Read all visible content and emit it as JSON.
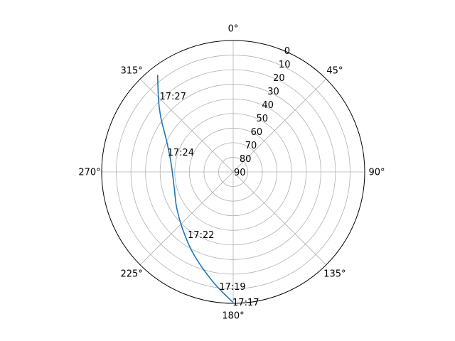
{
  "chart_data": {
    "type": "polar-line",
    "theta_direction": "clockwise",
    "theta_zero": "N",
    "r_axis": {
      "inverted": true,
      "range": [
        90,
        0
      ],
      "ticks": [
        "0",
        "10",
        "20",
        "30",
        "40",
        "50",
        "60",
        "70",
        "80",
        "90"
      ]
    },
    "theta_ticks": [
      {
        "deg": 0,
        "label": "0°"
      },
      {
        "deg": 45,
        "label": "45°"
      },
      {
        "deg": 90,
        "label": "90°"
      },
      {
        "deg": 135,
        "label": "135°"
      },
      {
        "deg": 180,
        "label": "180°"
      },
      {
        "deg": 225,
        "label": "225°"
      },
      {
        "deg": 270,
        "label": "270°"
      },
      {
        "deg": 315,
        "label": "315°"
      }
    ],
    "grid": true,
    "series": [
      {
        "color": "#1f77b4",
        "points": [
          {
            "az": 180.3,
            "el": 1.0
          },
          {
            "az": 190.0,
            "el": 13.0
          },
          {
            "az": 205.0,
            "el": 27.0
          },
          {
            "az": 220.0,
            "el": 37.0
          },
          {
            "az": 237.0,
            "el": 44.0
          },
          {
            "az": 253.0,
            "el": 48.0
          },
          {
            "az": 268.0,
            "el": 48.5
          },
          {
            "az": 282.0,
            "el": 46.0
          },
          {
            "az": 296.0,
            "el": 39.0
          },
          {
            "az": 307.0,
            "el": 28.0
          },
          {
            "az": 314.0,
            "el": 19.0
          },
          {
            "az": 322.0,
            "el": 6.0
          }
        ]
      }
    ],
    "annotations": [
      {
        "text": "17:17",
        "az": 180.3,
        "el": 1.0
      },
      {
        "text": "17:19",
        "az": 187.0,
        "el": 11.0
      },
      {
        "text": "17:22",
        "az": 216.0,
        "el": 37.0
      },
      {
        "text": "17:24",
        "az": 287.0,
        "el": 43.0
      },
      {
        "text": "17:27",
        "az": 316.0,
        "el": 17.5
      }
    ]
  }
}
